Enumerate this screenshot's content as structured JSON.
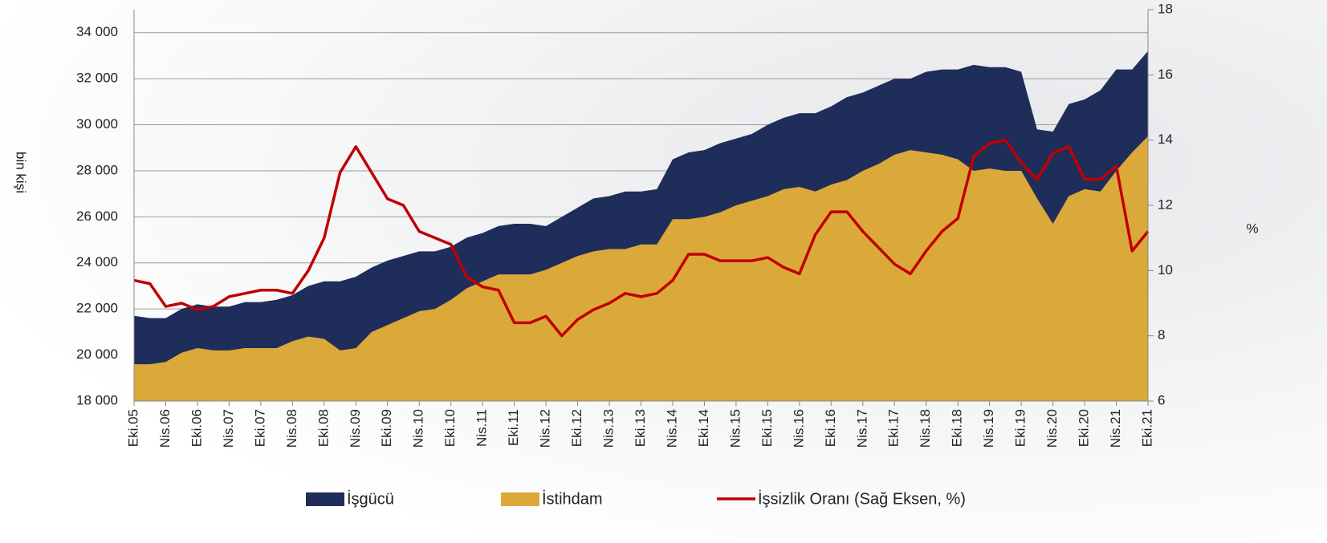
{
  "chart_data": {
    "type": "area-line",
    "y_label": "bin kişi",
    "y2_label": "%",
    "categories": [
      "Eki.05",
      null,
      "Nis.06",
      null,
      "Eki.06",
      null,
      "Nis.07",
      null,
      "Eki.07",
      null,
      "Nis.08",
      null,
      "Eki.08",
      null,
      "Nis.09",
      null,
      "Eki.09",
      null,
      "Nis.10",
      null,
      "Eki.10",
      null,
      "Nis.11",
      null,
      "Eki.11",
      null,
      "Nis.12",
      null,
      "Eki.12",
      null,
      "Nis.13",
      null,
      "Eki.13",
      null,
      "Nis.14",
      null,
      "Eki.14",
      null,
      "Nis.15",
      null,
      "Eki.15",
      null,
      "Nis.16",
      null,
      "Eki.16",
      null,
      "Nis.17",
      null,
      "Eki.17",
      null,
      "Nis.18",
      null,
      "Eki.18",
      null,
      "Nis.19",
      null,
      "Eki.19",
      null,
      "Nis.20",
      null,
      "Eki.20",
      null,
      "Nis.21",
      null,
      "Eki.21"
    ],
    "series": [
      {
        "name": "İşgücü",
        "type": "area",
        "color": "#1f2d5a",
        "values": [
          21700,
          21600,
          21600,
          22000,
          22200,
          22100,
          22100,
          22300,
          22300,
          22400,
          22600,
          23000,
          23200,
          23200,
          23400,
          23800,
          24100,
          24300,
          24500,
          24500,
          24700,
          25100,
          25300,
          25600,
          25700,
          25700,
          25600,
          26000,
          26400,
          26800,
          26900,
          27100,
          27100,
          27200,
          28500,
          28800,
          28900,
          29200,
          29400,
          29600,
          30000,
          30300,
          30500,
          30500,
          30800,
          31200,
          31400,
          31700,
          32000,
          32000,
          32300,
          32400,
          32400,
          32600,
          32500,
          32500,
          32300,
          29800,
          29700,
          30900,
          31100,
          31500,
          32400,
          32400,
          33200
        ]
      },
      {
        "name": "İstihdam",
        "type": "area",
        "color": "#dba83a",
        "values": [
          19600,
          19600,
          19700,
          20100,
          20300,
          20200,
          20200,
          20300,
          20300,
          20300,
          20600,
          20800,
          20700,
          20200,
          20300,
          21000,
          21300,
          21600,
          21900,
          22000,
          22400,
          22900,
          23200,
          23500,
          23500,
          23500,
          23700,
          24000,
          24300,
          24500,
          24600,
          24600,
          24800,
          24800,
          25900,
          25900,
          26000,
          26200,
          26500,
          26700,
          26900,
          27200,
          27300,
          27100,
          27400,
          27600,
          28000,
          28300,
          28700,
          28900,
          28800,
          28700,
          28500,
          28000,
          28100,
          28000,
          28000,
          26800,
          25700,
          26900,
          27200,
          27100,
          28000,
          28800,
          29500
        ]
      },
      {
        "name": "İşsizlik Oranı (Sağ Eksen, %)",
        "type": "line",
        "axis": "y2",
        "color": "#c00000",
        "values": [
          9.7,
          9.6,
          8.9,
          9.0,
          8.8,
          8.9,
          9.2,
          9.3,
          9.4,
          9.4,
          9.3,
          10.0,
          11.0,
          13.0,
          13.8,
          13.0,
          12.2,
          12.0,
          11.2,
          11.0,
          10.8,
          9.8,
          9.5,
          9.4,
          8.4,
          8.4,
          8.6,
          8.0,
          8.5,
          8.8,
          9.0,
          9.3,
          9.2,
          9.3,
          9.7,
          10.5,
          10.5,
          10.3,
          10.3,
          10.3,
          10.4,
          10.1,
          9.9,
          11.1,
          11.8,
          11.8,
          11.2,
          10.7,
          10.2,
          9.9,
          10.6,
          11.2,
          11.6,
          13.5,
          13.9,
          14.0,
          13.3,
          12.8,
          13.6,
          13.8,
          12.8,
          12.8,
          13.2,
          10.6,
          11.2
        ]
      }
    ],
    "ylim": [
      18000,
      35000
    ],
    "yticks": [
      {
        "value": 18000,
        "label": "18 000"
      },
      {
        "value": 20000,
        "label": "20 000"
      },
      {
        "value": 22000,
        "label": "22 000"
      },
      {
        "value": 24000,
        "label": "24 000"
      },
      {
        "value": 26000,
        "label": "26 000"
      },
      {
        "value": 28000,
        "label": "28 000"
      },
      {
        "value": 30000,
        "label": "30 000"
      },
      {
        "value": 32000,
        "label": "32 000"
      },
      {
        "value": 34000,
        "label": "34 000"
      }
    ],
    "y2lim": [
      6,
      18
    ],
    "y2ticks": [
      6,
      8,
      10,
      12,
      14,
      16,
      18
    ],
    "grid": true,
    "legend": "bottom"
  }
}
